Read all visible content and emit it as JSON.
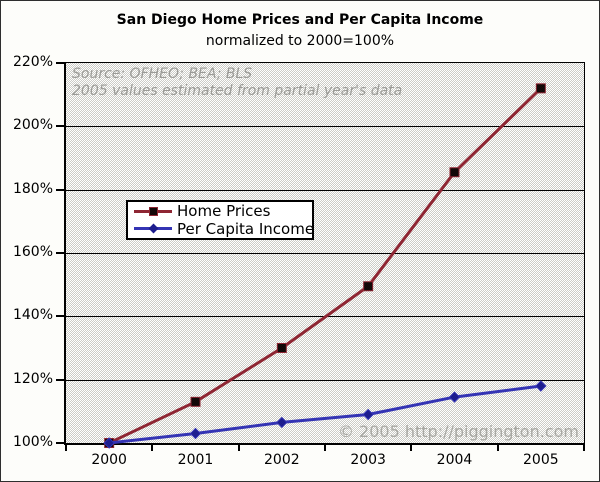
{
  "title": "San Diego Home Prices and Per Capita Income",
  "subtitle": "normalized to 2000=100%",
  "annotation": {
    "line1": "Source: OFHEO; BEA; BLS",
    "line2": "2005 values estimated from partial year's data"
  },
  "watermark": "© 2005 http://piggington.com",
  "colors": {
    "home_prices_line": "#8e2633",
    "home_prices_marker_fill": "#120808",
    "per_capita_income_line": "#3434b4",
    "per_capita_income_marker_fill": "#1d1d8e",
    "grid": "#000000",
    "plot_bg_light": "#ffffff",
    "plot_bg_dark": "#ccccc6",
    "annotation_text": "#9b9b97",
    "watermark_text": "#a8a8a3"
  },
  "chart_data": {
    "type": "line",
    "x": [
      "2000",
      "2001",
      "2002",
      "2003",
      "2004",
      "2005"
    ],
    "series": [
      {
        "name": "Home Prices",
        "values": [
          100,
          113,
          130,
          149.5,
          185.5,
          212
        ],
        "color": "#8e2633",
        "marker": "square",
        "marker_fill": "#120808"
      },
      {
        "name": "Per Capita Income",
        "values": [
          100,
          103,
          106.5,
          109,
          114.5,
          118
        ],
        "color": "#3434b4",
        "marker": "diamond",
        "marker_fill": "#1d1d8e"
      }
    ],
    "ylim": [
      100,
      220
    ],
    "yticks": [
      100,
      120,
      140,
      160,
      180,
      200,
      220
    ],
    "ytick_labels": [
      "100%",
      "120%",
      "140%",
      "160%",
      "180%",
      "200%",
      "220%"
    ],
    "xtick_labels": [
      "2000",
      "2001",
      "2002",
      "2003",
      "2004",
      "2005"
    ],
    "grid": true,
    "legend_position": "inside-left-middle"
  }
}
